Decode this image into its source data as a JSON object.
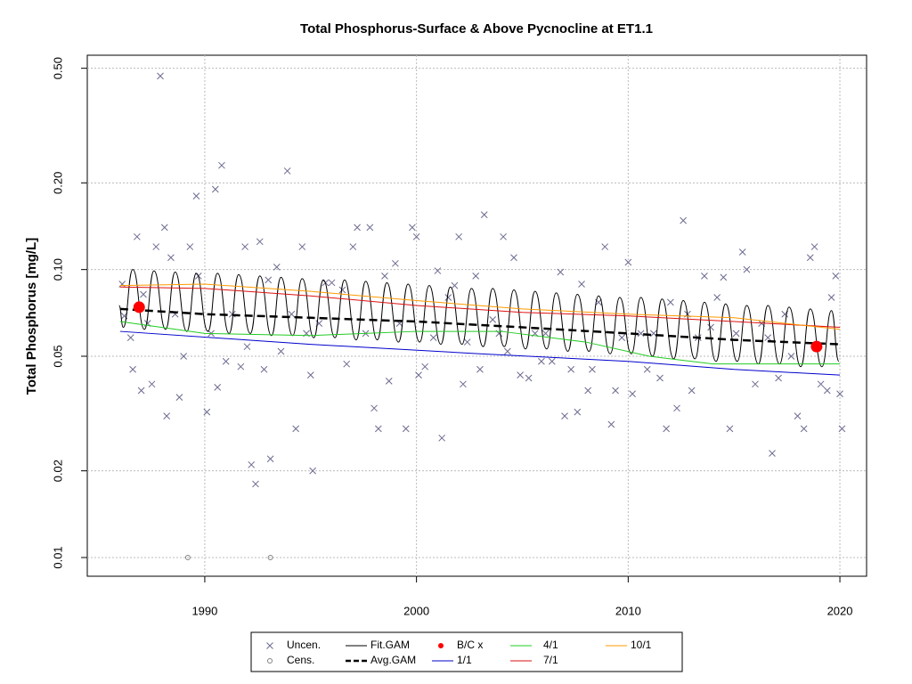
{
  "chart_data": {
    "type": "line",
    "title": "Total Phosphorus-Surface & Above Pycnocline at ET1.1",
    "y_label": "Total Phosphorus [mg/L]",
    "log_y": true,
    "grid": true,
    "legend": "bottom",
    "xlim": [
      1984.45,
      2021.26
    ],
    "ylim": [
      0.00861,
      0.555
    ],
    "xticks": [
      1990,
      2000,
      2010,
      2020
    ],
    "yticks": [
      0.01,
      0.02,
      0.05,
      {
        "value": 0.1,
        "label": "0.10"
      },
      {
        "value": 0.2,
        "label": "0.20"
      },
      {
        "value": 0.5,
        "label": "0.50"
      }
    ],
    "series": [
      {
        "name": "Uncen.",
        "style": "points",
        "marker": "x",
        "color": "#6b6b90",
        "x": [
          1986.1,
          1986.2,
          1986.5,
          1986.6,
          1986.8,
          1987.0,
          1987.1,
          1987.3,
          1987.5,
          1987.7,
          1987.9,
          1988.1,
          1988.2,
          1988.4,
          1988.6,
          1988.8,
          1989.0,
          1989.3,
          1989.6,
          1989.7,
          1990.1,
          1990.3,
          1990.5,
          1990.6,
          1990.8,
          1991.0,
          1991.3,
          1991.7,
          1991.9,
          1992.0,
          1992.2,
          1992.4,
          1992.6,
          1992.8,
          1993.0,
          1993.1,
          1993.4,
          1993.6,
          1993.9,
          1994.1,
          1994.3,
          1994.6,
          1994.8,
          1995.0,
          1995.1,
          1995.4,
          1995.7,
          1996.0,
          1996.5,
          1996.7,
          1997.0,
          1997.2,
          1997.6,
          1997.8,
          1998.0,
          1998.2,
          1998.5,
          1998.7,
          1999.0,
          1999.2,
          1999.5,
          1999.8,
          2000.0,
          2000.1,
          2000.4,
          2000.8,
          2001.0,
          2001.2,
          2001.5,
          2001.8,
          2002.0,
          2002.2,
          2002.4,
          2002.8,
          2003.0,
          2003.2,
          2003.6,
          2003.9,
          2004.1,
          2004.3,
          2004.6,
          2004.9,
          2005.3,
          2005.6,
          2005.9,
          2006.1,
          2006.4,
          2006.8,
          2007.0,
          2007.3,
          2007.6,
          2007.8,
          2008.1,
          2008.3,
          2008.6,
          2008.9,
          2009.2,
          2009.4,
          2009.7,
          2010.0,
          2010.2,
          2010.6,
          2010.9,
          2011.2,
          2011.5,
          2011.8,
          2012.0,
          2012.3,
          2012.6,
          2012.8,
          2013.0,
          2013.3,
          2013.6,
          2013.9,
          2014.2,
          2014.5,
          2014.8,
          2015.1,
          2015.4,
          2015.6,
          2016.0,
          2016.3,
          2016.6,
          2016.8,
          2017.1,
          2017.4,
          2017.7,
          2018.0,
          2018.3,
          2018.6,
          2018.8,
          2019.1,
          2019.4,
          2019.6,
          2019.8,
          2020.0,
          2020.1
        ],
        "values": [
          0.089,
          0.069,
          0.058,
          0.045,
          0.13,
          0.038,
          0.082,
          0.065,
          0.04,
          0.12,
          0.47,
          0.14,
          0.031,
          0.11,
          0.07,
          0.036,
          0.05,
          0.12,
          0.18,
          0.095,
          0.032,
          0.06,
          0.19,
          0.039,
          0.23,
          0.048,
          0.07,
          0.046,
          0.12,
          0.054,
          0.021,
          0.018,
          0.125,
          0.045,
          0.092,
          0.022,
          0.102,
          0.052,
          0.22,
          0.07,
          0.028,
          0.12,
          0.06,
          0.043,
          0.02,
          0.065,
          0.09,
          0.09,
          0.085,
          0.047,
          0.12,
          0.14,
          0.06,
          0.14,
          0.033,
          0.028,
          0.095,
          0.041,
          0.105,
          0.065,
          0.028,
          0.14,
          0.13,
          0.043,
          0.046,
          0.058,
          0.099,
          0.026,
          0.08,
          0.088,
          0.13,
          0.04,
          0.056,
          0.095,
          0.045,
          0.155,
          0.067,
          0.06,
          0.13,
          0.052,
          0.11,
          0.043,
          0.042,
          0.06,
          0.048,
          0.06,
          0.048,
          0.098,
          0.031,
          0.045,
          0.032,
          0.089,
          0.038,
          0.045,
          0.077,
          0.12,
          0.029,
          0.038,
          0.058,
          0.106,
          0.037,
          0.06,
          0.045,
          0.06,
          0.042,
          0.028,
          0.077,
          0.033,
          0.148,
          0.07,
          0.038,
          0.058,
          0.095,
          0.063,
          0.08,
          0.094,
          0.028,
          0.06,
          0.115,
          0.1,
          0.04,
          0.065,
          0.058,
          0.023,
          0.042,
          0.07,
          0.05,
          0.031,
          0.028,
          0.11,
          0.12,
          0.04,
          0.038,
          0.08,
          0.095,
          0.037,
          0.028
        ]
      },
      {
        "name": "Cens.",
        "style": "points",
        "marker": "o",
        "color": "#808080",
        "x": [
          1989.2,
          1993.1
        ],
        "values": [
          0.01,
          0.01
        ]
      },
      {
        "name": "Fit.GAM",
        "style": "line",
        "smooth": true,
        "color": "#000000",
        "x": [
          1985.95,
          1986.15,
          1986.6,
          1987.15,
          1987.6,
          1988.15,
          1988.6,
          1989.15,
          1989.6,
          1990.15,
          1990.6,
          1991.15,
          1991.6,
          1992.15,
          1992.6,
          1993.15,
          1993.6,
          1994.15,
          1994.6,
          1995.15,
          1995.6,
          1996.15,
          1996.6,
          1997.15,
          1997.6,
          1998.15,
          1998.6,
          1999.15,
          1999.6,
          2000.15,
          2000.6,
          2001.15,
          2001.6,
          2002.15,
          2002.6,
          2003.15,
          2003.6,
          2004.15,
          2004.6,
          2005.15,
          2005.6,
          2006.15,
          2006.6,
          2007.15,
          2007.6,
          2008.15,
          2008.6,
          2009.15,
          2009.6,
          2010.15,
          2010.6,
          2011.15,
          2011.6,
          2012.15,
          2012.6,
          2013.15,
          2013.6,
          2014.15,
          2014.6,
          2015.15,
          2015.6,
          2016.15,
          2016.6,
          2017.15,
          2017.6,
          2018.15,
          2018.6,
          2019.15,
          2019.6,
          2019.95
        ],
        "values": [
          0.075,
          0.063,
          0.1,
          0.062,
          0.099,
          0.062,
          0.098,
          0.061,
          0.097,
          0.061,
          0.097,
          0.06,
          0.096,
          0.06,
          0.095,
          0.059,
          0.094,
          0.059,
          0.093,
          0.058,
          0.092,
          0.058,
          0.092,
          0.057,
          0.091,
          0.057,
          0.09,
          0.056,
          0.089,
          0.056,
          0.088,
          0.055,
          0.087,
          0.055,
          0.086,
          0.054,
          0.086,
          0.054,
          0.085,
          0.053,
          0.084,
          0.053,
          0.083,
          0.052,
          0.082,
          0.052,
          0.081,
          0.051,
          0.08,
          0.051,
          0.08,
          0.05,
          0.079,
          0.049,
          0.078,
          0.049,
          0.077,
          0.048,
          0.076,
          0.048,
          0.075,
          0.047,
          0.075,
          0.047,
          0.074,
          0.046,
          0.073,
          0.046,
          0.072,
          0.048
        ]
      },
      {
        "name": "Avg.GAM",
        "style": "line",
        "dash": true,
        "width": 2.5,
        "color": "#000000",
        "x": [
          1986,
          1990,
          1995,
          2000,
          2005,
          2010,
          2015,
          2020
        ],
        "values": [
          0.073,
          0.07,
          0.068,
          0.066,
          0.063,
          0.06,
          0.057,
          0.055
        ]
      },
      {
        "name": "B/C x",
        "style": "points",
        "marker": "dot",
        "color": "#ff0000",
        "x": [
          1986.9,
          2018.9
        ],
        "values": [
          0.074,
          0.054
        ]
      },
      {
        "name": "1/1",
        "style": "line",
        "color": "#0000cd",
        "x": [
          1986,
          1995,
          2003,
          2010,
          2015,
          2020
        ],
        "values": [
          0.061,
          0.055,
          0.051,
          0.048,
          0.045,
          0.043
        ]
      },
      {
        "name": "4/1",
        "style": "line",
        "color": "#22cc22",
        "x": [
          1986,
          1990,
          1995,
          2000,
          2004,
          2008,
          2011,
          2014,
          2020
        ],
        "values": [
          0.066,
          0.06,
          0.059,
          0.061,
          0.061,
          0.056,
          0.05,
          0.047,
          0.047
        ]
      },
      {
        "name": "7/1",
        "style": "line",
        "color": "#dd1111",
        "x": [
          1986,
          1990,
          1995,
          2000,
          2005,
          2010,
          2015,
          2020
        ],
        "values": [
          0.087,
          0.086,
          0.081,
          0.075,
          0.071,
          0.069,
          0.066,
          0.063
        ]
      },
      {
        "name": "10/1",
        "style": "line",
        "color": "#ff9900",
        "x": [
          1986,
          1990,
          1995,
          2000,
          2005,
          2010,
          2015,
          2020
        ],
        "values": [
          0.088,
          0.089,
          0.084,
          0.078,
          0.073,
          0.07,
          0.068,
          0.062
        ]
      }
    ]
  }
}
